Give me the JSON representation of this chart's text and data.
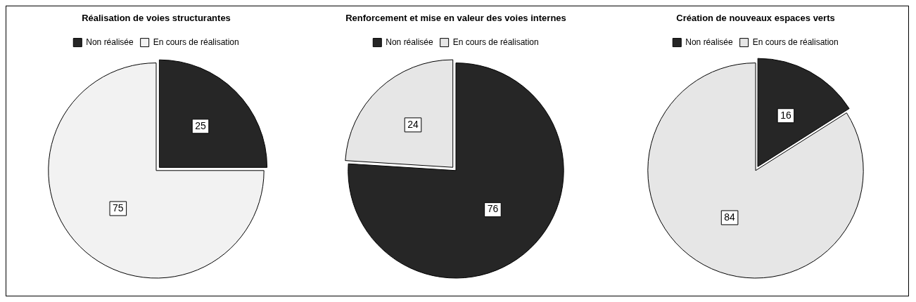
{
  "chart_data": [
    {
      "type": "pie",
      "title": "Réalisation de voies structurantes",
      "categories": [
        "Non réalisée",
        "En cours de réalisation"
      ],
      "values": [
        25,
        75
      ],
      "colors": [
        "#262626",
        "#f2f2f2"
      ],
      "legend": "top",
      "data_labels": true
    },
    {
      "type": "pie",
      "title": "Renforcement et mise en valeur des voies internes",
      "categories": [
        "Non réalisée",
        "En cours de réalisation"
      ],
      "values": [
        76,
        24
      ],
      "colors": [
        "#262626",
        "#e6e6e6"
      ],
      "legend": "top",
      "data_labels": true
    },
    {
      "type": "pie",
      "title": "Création de nouveaux espaces verts",
      "categories": [
        "Non réalisée",
        "En cours de réalisation"
      ],
      "values": [
        16,
        84
      ],
      "colors": [
        "#262626",
        "#e6e6e6"
      ],
      "legend": "top",
      "data_labels": true
    }
  ]
}
